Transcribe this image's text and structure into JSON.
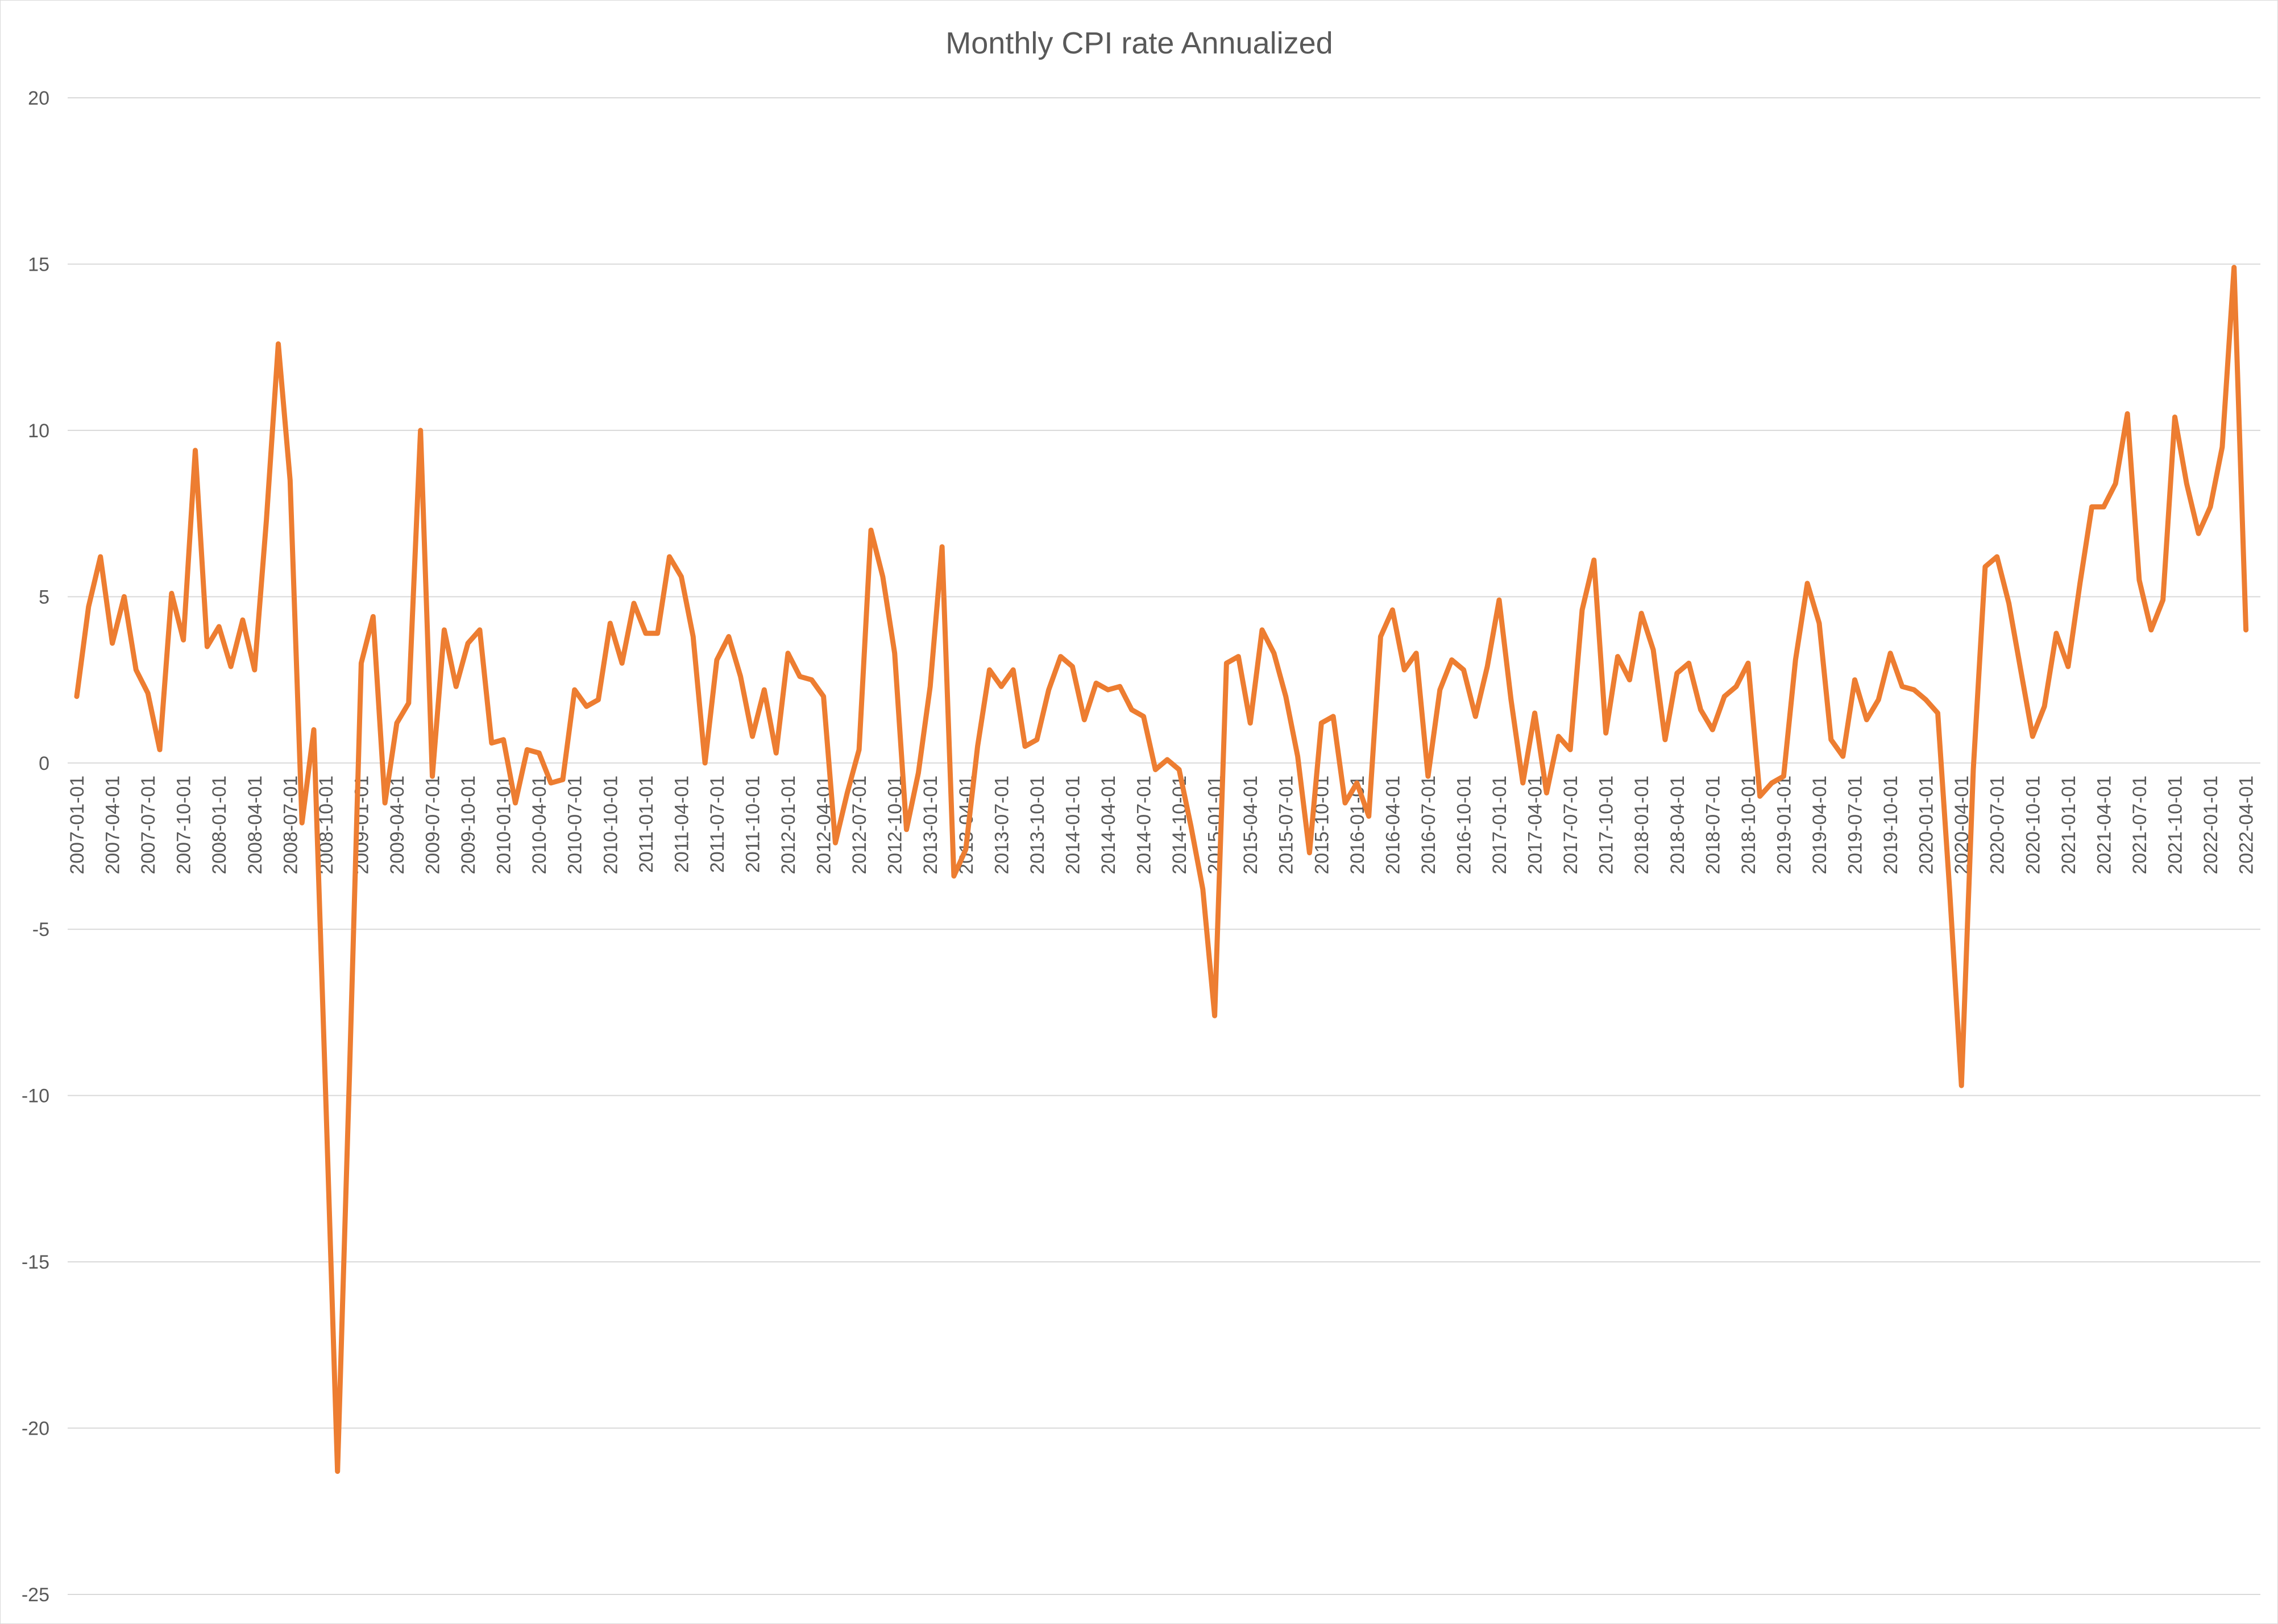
{
  "chart_data": {
    "type": "line",
    "title": "Monthly CPI rate Annualized",
    "xlabel": "",
    "ylabel": "",
    "ylim": [
      -25,
      20
    ],
    "y_ticks": [
      20,
      15,
      10,
      5,
      0,
      -5,
      -10,
      -15,
      -20,
      -25
    ],
    "x_tick_labels": [
      "2007-01-01",
      "2007-04-01",
      "2007-07-01",
      "2007-10-01",
      "2008-01-01",
      "2008-04-01",
      "2008-07-01",
      "2008-10-01",
      "2009-01-01",
      "2009-04-01",
      "2009-07-01",
      "2009-10-01",
      "2010-01-01",
      "2010-04-01",
      "2010-07-01",
      "2010-10-01",
      "2011-01-01",
      "2011-04-01",
      "2011-07-01",
      "2011-10-01",
      "2012-01-01",
      "2012-04-01",
      "2012-07-01",
      "2012-10-01",
      "2013-01-01",
      "2013-04-01",
      "2013-07-01",
      "2013-10-01",
      "2014-01-01",
      "2014-04-01",
      "2014-07-01",
      "2014-10-01",
      "2015-01-01",
      "2015-04-01",
      "2015-07-01",
      "2015-10-01",
      "2016-01-01",
      "2016-04-01",
      "2016-07-01",
      "2016-10-01",
      "2017-01-01",
      "2017-04-01",
      "2017-07-01",
      "2017-10-01",
      "2018-01-01",
      "2018-04-01",
      "2018-07-01",
      "2018-10-01",
      "2019-01-01",
      "2019-04-01",
      "2019-07-01",
      "2019-10-01",
      "2020-01-01",
      "2020-04-01",
      "2020-07-01",
      "2020-10-01",
      "2021-01-01",
      "2021-04-01",
      "2021-07-01",
      "2021-10-01",
      "2022-01-01",
      "2022-04-01"
    ],
    "grid": true,
    "legend": "none",
    "line_color": "#ED7D31",
    "series": [
      {
        "start": "2007-01-01",
        "frequency": "monthly",
        "values": [
          2.0,
          4.7,
          6.2,
          3.6,
          5.0,
          2.8,
          2.1,
          0.4,
          5.1,
          3.7,
          9.4,
          3.5,
          4.1,
          2.9,
          4.3,
          2.8,
          7.3,
          12.6,
          8.5,
          -1.8,
          1.0,
          -10.0,
          -21.3,
          -9.5,
          3.0,
          4.4,
          -1.2,
          1.2,
          1.8,
          10.0,
          -0.4,
          4.0,
          2.3,
          3.6,
          4.0,
          0.6,
          0.7,
          -1.2,
          0.4,
          0.3,
          -0.6,
          -0.5,
          2.2,
          1.7,
          1.9,
          4.2,
          3.0,
          4.8,
          3.9,
          3.9,
          6.2,
          5.6,
          3.8,
          0.0,
          3.1,
          3.8,
          2.6,
          0.8,
          2.2,
          0.3,
          3.3,
          2.6,
          2.5,
          2.0,
          -2.4,
          -0.9,
          0.4,
          7.0,
          5.6,
          3.3,
          -2.0,
          -0.3,
          2.3,
          6.5,
          -3.4,
          -2.6,
          0.5,
          2.8,
          2.3,
          2.8,
          0.5,
          0.7,
          2.2,
          3.2,
          2.9,
          1.3,
          2.4,
          2.2,
          2.3,
          1.6,
          1.4,
          -0.2,
          0.1,
          -0.2,
          -1.9,
          -3.8,
          -7.6,
          3.0,
          3.2,
          1.2,
          4.0,
          3.3,
          2.0,
          0.2,
          -2.7,
          1.2,
          1.4,
          -1.2,
          -0.6,
          -1.6,
          3.8,
          4.6,
          2.8,
          3.3,
          -0.4,
          2.2,
          3.1,
          2.8,
          1.4,
          2.9,
          4.9,
          1.9,
          -0.6,
          1.5,
          -0.9,
          0.8,
          0.4,
          4.6,
          6.1,
          0.9,
          3.2,
          2.5,
          4.5,
          3.4,
          0.7,
          2.7,
          3.0,
          1.6,
          1.0,
          2.0,
          2.3,
          3.0,
          -1.0,
          -0.6,
          -0.4,
          3.1,
          5.4,
          4.2,
          0.7,
          0.2,
          2.5,
          1.3,
          1.9,
          3.3,
          2.3,
          2.2,
          1.9,
          1.5,
          -3.8,
          -9.7,
          -0.2,
          5.9,
          6.2,
          4.8,
          2.8,
          0.8,
          1.7,
          3.9,
          2.9,
          5.4,
          7.7,
          7.7,
          8.4,
          10.5,
          5.5,
          4.0,
          4.9,
          10.4,
          8.4,
          6.9,
          7.7,
          9.5,
          14.9,
          4.0
        ]
      }
    ]
  }
}
